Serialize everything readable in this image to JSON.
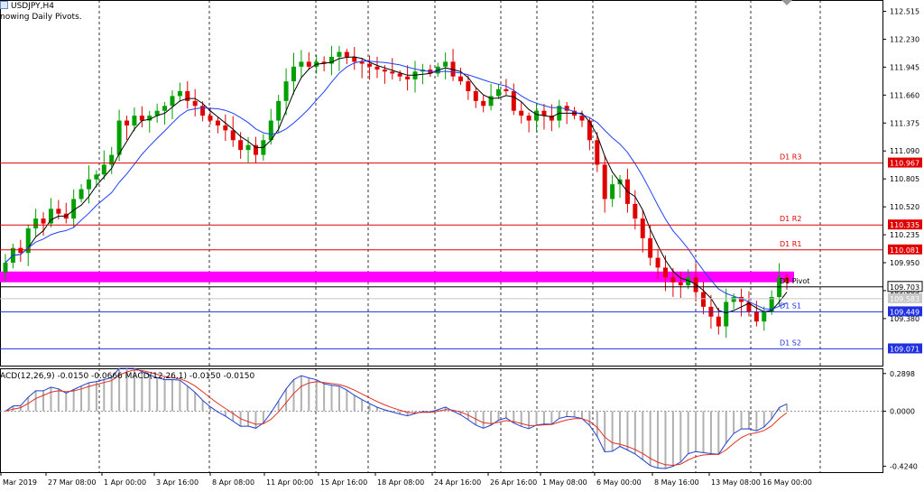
{
  "header": {
    "symbol_label": "USDJPY,H4",
    "indicator_label": "nowing Daily Pivots."
  },
  "macd_label": "ACD(12,26,9) -0.0150 -0.0666 MACD(12,26,1) -0.0150 -0.0150",
  "colors": {
    "bull": "#00a000",
    "bear": "#e00000",
    "ma_fast": "#000000",
    "ma_slow": "#2040ff",
    "resistance": "#e00000",
    "support": "#2030e0",
    "pivot_band": "#ff00ff",
    "macd_hist": "#b0b0b0",
    "macd_main": "#2040d0",
    "macd_signal": "#e03020"
  },
  "chart_data": {
    "type": "candlestick",
    "symbol": "USDJPY",
    "timeframe": "H4",
    "ylim": [
      108.9,
      112.63
    ],
    "yticks": [
      "112.515",
      "112.230",
      "111.945",
      "111.660",
      "111.375",
      "111.090",
      "110.805",
      "110.520",
      "110.235",
      "109.950",
      "109.665",
      "109.380"
    ],
    "xticks": [
      "Mar 2019",
      "27 Mar 08:00",
      "1 Apr 00:00",
      "3 Apr 16:00",
      "8 Apr 08:00",
      "11 Apr 00:00",
      "15 Apr 16:00",
      "18 Apr 08:00",
      "24 Apr 16:00",
      "26 Apr 16:00",
      "1 May 08:00",
      "6 May 00:00",
      "8 May 16:00",
      "13 May 08:00",
      "16 May 00:00"
    ],
    "series_close": [
      109.95,
      110.1,
      110.05,
      110.3,
      110.4,
      110.35,
      110.5,
      110.45,
      110.4,
      110.6,
      110.7,
      110.8,
      110.85,
      110.95,
      111.05,
      111.4,
      111.35,
      111.45,
      111.4,
      111.45,
      111.5,
      111.55,
      111.65,
      111.7,
      111.6,
      111.55,
      111.45,
      111.4,
      111.35,
      111.3,
      111.2,
      111.1,
      111.15,
      111.05,
      111.2,
      111.4,
      111.6,
      111.8,
      111.95,
      112.0,
      111.95,
      112.0,
      111.98,
      112.05,
      112.1,
      112.05,
      112.0,
      111.98,
      111.95,
      111.92,
      111.9,
      111.88,
      111.85,
      111.82,
      111.9,
      111.92,
      111.88,
      111.95,
      112.0,
      111.85,
      111.8,
      111.7,
      111.6,
      111.55,
      111.65,
      111.72,
      111.7,
      111.5,
      111.45,
      111.4,
      111.5,
      111.45,
      111.4,
      111.55,
      111.5,
      111.45,
      111.4,
      111.2,
      110.95,
      110.6,
      110.75,
      110.8,
      110.55,
      110.4,
      110.2,
      110.0,
      109.9,
      109.8,
      109.75,
      109.72,
      109.8,
      109.65,
      109.5,
      109.4,
      109.3,
      109.55,
      109.6,
      109.55,
      109.45,
      109.35,
      109.45,
      109.6,
      109.8,
      109.75
    ],
    "macd": {
      "ylim": [
        -0.47,
        0.33
      ],
      "yticks": [
        "0.2898",
        "0.0000",
        "-0.4240"
      ]
    }
  },
  "pivots": [
    {
      "label": "D1  R3",
      "value": 110.967,
      "price_text": "110.967",
      "kind": "resistance"
    },
    {
      "label": "D1  R2",
      "value": 110.335,
      "price_text": "110.335",
      "kind": "resistance"
    },
    {
      "label": "D1  R1",
      "value": 110.081,
      "price_text": "110.081",
      "kind": "resistance"
    },
    {
      "label": "D1  Pivot",
      "value": 109.703,
      "price_text": "109.703",
      "kind": "pivot"
    },
    {
      "label": "D1  S1",
      "value": 109.449,
      "price_text": "109.449",
      "kind": "support"
    },
    {
      "label": "D1  S2",
      "value": 109.071,
      "price_text": "109.071",
      "kind": "support"
    }
  ],
  "current_price": {
    "value": 109.583,
    "price_text": "109.583"
  },
  "pivot_band": [
    109.75,
    109.86
  ]
}
